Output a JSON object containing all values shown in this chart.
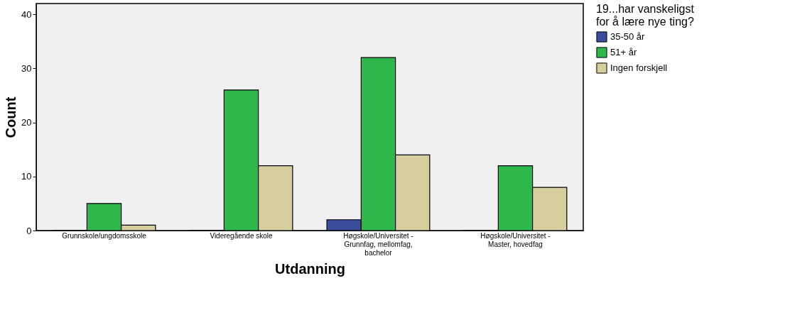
{
  "chart_data": {
    "type": "bar",
    "categories": [
      "Grunnskole/ungdomsskole",
      "Videregående skole",
      "Høgskole/Universitet - Grunnfag, mellomfag, bachelor",
      "Høgskole/Universitet - Master, hovedfag"
    ],
    "series": [
      {
        "name": "35-50 år",
        "color": "#3b4c9b",
        "values": [
          0,
          0,
          2,
          0
        ]
      },
      {
        "name": "51+ år",
        "color": "#2eb84b",
        "values": [
          5,
          26,
          32,
          12
        ]
      },
      {
        "name": "Ingen forskjell",
        "color": "#d6cf9d",
        "values": [
          1,
          12,
          14,
          8
        ]
      }
    ],
    "xlabel": "Utdanning",
    "ylabel": "Count",
    "legend_title": "19...har vanskeligst for å lære nye ting?",
    "ylim": [
      0,
      42
    ],
    "yticks": [
      0,
      10,
      20,
      30,
      40
    ],
    "grid": false,
    "legend": "right"
  }
}
